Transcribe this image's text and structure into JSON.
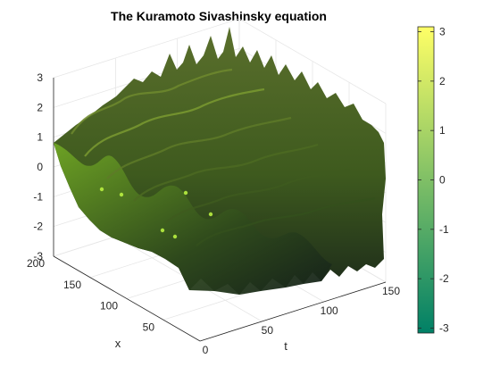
{
  "chart_data": {
    "type": "surface",
    "title": "The Kuramoto Sivashinsky equation",
    "xlabel": "t",
    "ylabel": "x",
    "zlabel": "",
    "xlim": [
      0,
      150
    ],
    "ylim": [
      0,
      200
    ],
    "zlim": [
      -3,
      3
    ],
    "x_ticks": [
      0,
      50,
      100,
      150
    ],
    "y_ticks": [
      50,
      100,
      150,
      200
    ],
    "z_ticks": [
      -3,
      -2,
      -1,
      0,
      1,
      2,
      3
    ],
    "colorbar": {
      "limits": [
        -3.1,
        3.1
      ],
      "ticks": [
        -3,
        -2,
        -1,
        0,
        1,
        2,
        3
      ],
      "colormap": "summer",
      "low_color": "#008066",
      "high_color": "#ffff66"
    },
    "grid": true,
    "surface_color_dark": "#1f2d1c",
    "surface_color_mid": "#4f6b25",
    "surface_color_light": "#8ccf2a"
  }
}
